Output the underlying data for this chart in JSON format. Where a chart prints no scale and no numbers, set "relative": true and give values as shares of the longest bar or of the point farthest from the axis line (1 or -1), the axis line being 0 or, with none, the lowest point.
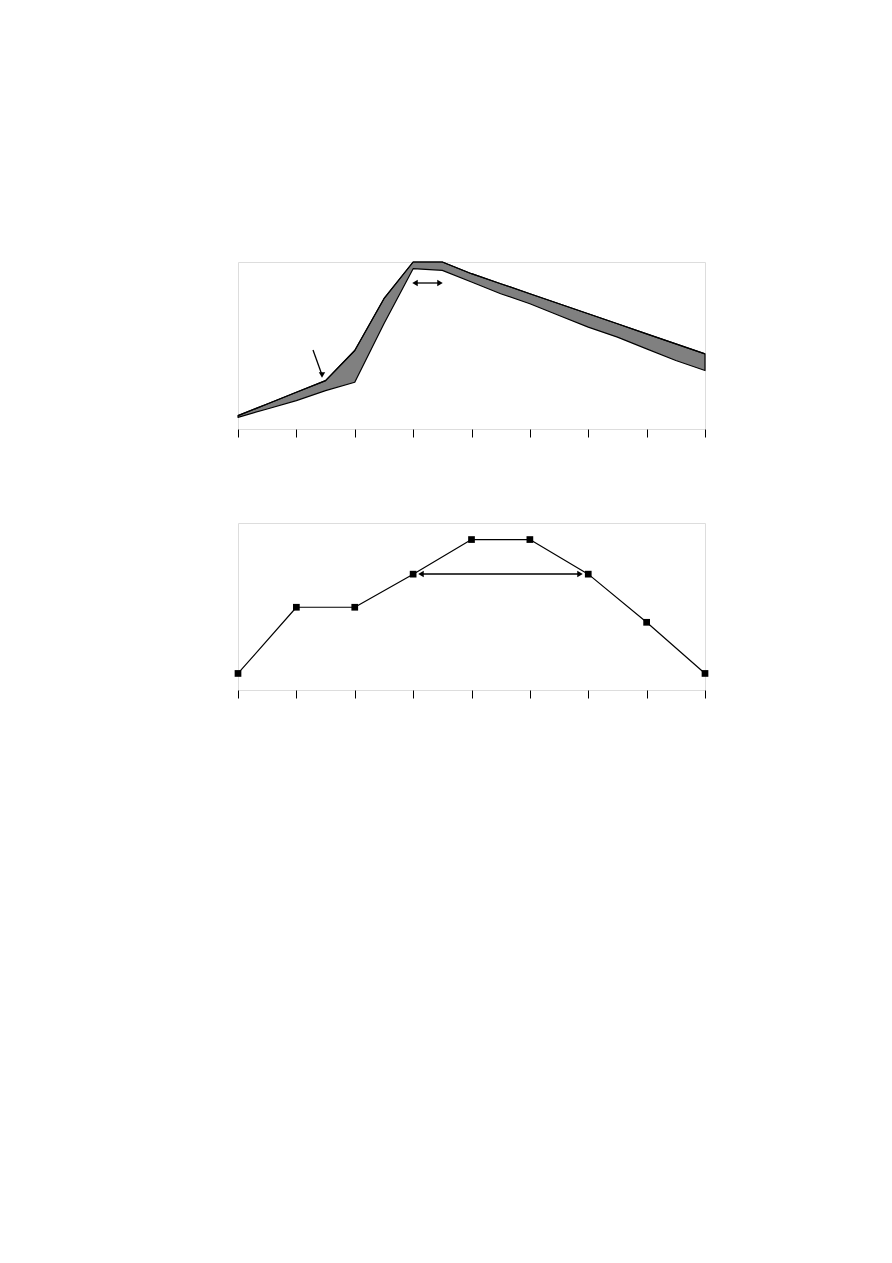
{
  "chart_data": [
    {
      "type": "line",
      "relative": true,
      "categories": [
        null,
        null,
        null,
        null,
        null,
        null,
        null,
        null,
        null,
        null,
        null,
        null,
        null,
        null,
        null,
        null,
        null
      ],
      "series": [
        {
          "color": "#000000",
          "values": [
            0.08,
            0.15,
            0.22,
            0.29,
            0.47,
            0.78,
            1,
            1,
            0.93,
            0.87,
            0.81,
            0.75,
            0.69,
            0.63,
            0.57,
            0.51,
            0.45
          ],
          "lower": [
            0.07,
            0.12,
            0.17,
            0.23,
            0.28,
            0.63,
            0.96,
            0.95,
            0.88,
            0.81,
            0.75,
            0.68,
            0.61,
            0.55,
            0.48,
            0.41,
            0.35
          ],
          "upper": [
            0.08,
            0.15,
            0.22,
            0.29,
            0.47,
            0.78,
            1,
            1,
            0.93,
            0.87,
            0.81,
            0.75,
            0.69,
            0.63,
            0.57,
            0.51,
            0.45
          ]
        }
      ]
    },
    {
      "type": "line",
      "relative": true,
      "categories": [
        null,
        null,
        null,
        null,
        null,
        null,
        null,
        null,
        null
      ],
      "marker": "square",
      "line_style": "solid",
      "series": [
        {
          "color": "#000000",
          "values": [
            0.11,
            0.55,
            0.55,
            0.77,
            1,
            1,
            0.77,
            0.45,
            0.11
          ]
        }
      ]
    }
  ]
}
